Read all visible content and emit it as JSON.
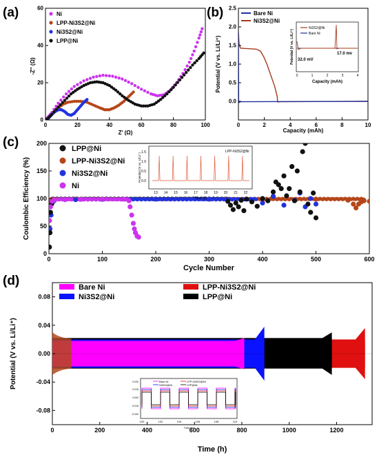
{
  "colors": {
    "ni": "#cc33ee",
    "lpp_ni3s2": "#b5461a",
    "ni3s2": "#2233dd",
    "lpp": "#111111",
    "bare_ni_b": "#1f2f9f",
    "ni3s2_b": "#a33a1a",
    "bare_d": "#ff00ff",
    "ni3s2_d": "#0a12ff",
    "lpp_ni3s2_d": "#e01010",
    "lpp_d": "#000000"
  },
  "chart_data": [
    {
      "panel": "(a)",
      "type": "scatter",
      "xlabel": "Z' (Ω)",
      "ylabel": "-Z'' (Ω)",
      "xlim": [
        0,
        100
      ],
      "ylim": [
        0,
        60
      ],
      "xticks": [
        "0",
        "20",
        "40",
        "60",
        "80",
        "100"
      ],
      "yticks": [
        "0",
        "20",
        "40",
        "60"
      ],
      "legend": {
        "placement": "top-left",
        "entries": [
          "Ni",
          "LPP-Ni3S2@Ni",
          "Ni3S2@Ni",
          "LPP@Ni"
        ]
      },
      "series": [
        {
          "name": "Ni",
          "x": [
            1,
            4,
            8,
            13,
            18,
            24,
            30,
            36,
            42,
            48,
            54,
            60,
            66,
            70,
            74,
            78,
            82,
            86,
            90,
            93,
            96,
            98
          ],
          "y": [
            1,
            4,
            9,
            14,
            18,
            21,
            23,
            24,
            23.5,
            22,
            19.5,
            16.5,
            14,
            13,
            13.5,
            16,
            20,
            25,
            31,
            37,
            44,
            49
          ]
        },
        {
          "name": "LPP-Ni3S2@Ni",
          "x": [
            2,
            5,
            8,
            11,
            14,
            18,
            22,
            26,
            30,
            34,
            37,
            40,
            43,
            46,
            49,
            52,
            55
          ],
          "y": [
            1,
            4,
            6.5,
            8.5,
            9.5,
            10,
            10,
            9.5,
            8,
            6.5,
            5.5,
            5.5,
            6.5,
            8,
            10,
            12.5,
            15
          ]
        },
        {
          "name": "Ni3S2@Ni",
          "x": [
            2,
            4,
            6,
            8,
            10,
            12,
            14,
            16,
            18,
            20,
            22,
            24,
            26
          ],
          "y": [
            1,
            3,
            4.5,
            5.5,
            5.5,
            4.5,
            3,
            2.5,
            3.5,
            5.5,
            7.5,
            9.5,
            11
          ]
        },
        {
          "name": "LPP@Ni",
          "x": [
            1,
            4,
            8,
            12,
            16,
            20,
            24,
            28,
            32,
            36,
            40,
            44,
            48,
            52,
            56,
            60,
            64,
            68,
            72,
            76,
            80,
            84,
            88,
            92,
            96,
            99
          ],
          "y": [
            0.5,
            3,
            7,
            10.5,
            14,
            16.5,
            18.5,
            20,
            20.5,
            20,
            18.5,
            16,
            13,
            10.5,
            8.5,
            7.5,
            7.5,
            8.5,
            11,
            14,
            17.5,
            21.5,
            25.5,
            29.5,
            33,
            36
          ]
        }
      ]
    },
    {
      "panel": "(b)",
      "type": "line",
      "xlabel": "Capacity (mAh)",
      "ylabel": "Potential (V vs. Li/Li⁺)",
      "xlim": [
        0,
        10
      ],
      "ylim": [
        -0.5,
        2.5
      ],
      "xticks": [
        "0",
        "2",
        "4",
        "6",
        "8",
        "10"
      ],
      "yticks": [
        "0.0",
        "0.5",
        "1.0",
        "1.5",
        "2.0",
        "2.5"
      ],
      "legend": {
        "placement": "top-left",
        "entries": [
          "Bare Ni",
          "Ni3S2@Ni"
        ]
      },
      "series": [
        {
          "name": "Bare Ni",
          "x": [
            0,
            0.02,
            0.06,
            0.15,
            10
          ],
          "y": [
            1.85,
            0.0,
            -0.03,
            -0.01,
            0.0
          ]
        },
        {
          "name": "Ni3S2@Ni",
          "x": [
            0,
            0.05,
            0.15,
            0.5,
            1.0,
            1.4,
            1.7,
            1.95,
            2.2,
            2.5,
            2.8,
            3.0,
            3.02,
            3.06,
            3.15,
            10
          ],
          "y": [
            1.85,
            1.55,
            1.43,
            1.42,
            1.41,
            1.4,
            1.35,
            1.2,
            1.0,
            0.7,
            0.4,
            0.12,
            0.0,
            -0.02,
            -0.01,
            0.0
          ]
        }
      ],
      "inset": {
        "xlabel": "Capacity (mAh)",
        "ylabel": "Potential (V vs. Li/Li⁺)",
        "xlim": [
          0,
          4
        ],
        "xticks": [
          "0",
          "1",
          "2",
          "3",
          "4"
        ],
        "legend": [
          "Ni3S2@Ni",
          "Bare Ni"
        ],
        "annotations": [
          "32.0 mV",
          "17.0 mv"
        ]
      }
    },
    {
      "panel": "(c)",
      "type": "scatter",
      "xlabel": "Cycle Number",
      "ylabel": "Coulombic Efficiency (%)",
      "xlim": [
        0,
        600
      ],
      "ylim": [
        0,
        200
      ],
      "xticks": [
        "0",
        "100",
        "200",
        "300",
        "400",
        "500",
        "600"
      ],
      "yticks": [
        "0",
        "50",
        "100",
        "150",
        "200"
      ],
      "legend": {
        "placement": "top-left",
        "entries": [
          "LPP@Ni",
          "LPP-Ni3S2@Ni",
          "Ni3S2@Ni",
          "Ni"
        ]
      },
      "series": [
        {
          "name": "LPP@Ni",
          "note": "~99.5% baseline, scatter after cycle 330",
          "x": [
            1,
            2,
            3,
            5,
            8,
            335,
            340,
            345,
            350,
            355,
            360,
            365,
            370,
            380,
            390,
            400,
            410,
            420,
            425,
            430,
            435,
            440,
            445,
            450,
            455,
            460,
            465,
            470,
            475,
            480,
            485,
            490,
            495,
            500
          ],
          "y": [
            12,
            38,
            75,
            90,
            96,
            95,
            88,
            80,
            92,
            85,
            97,
            78,
            99,
            94,
            86,
            100,
            96,
            112,
            130,
            125,
            118,
            141,
            105,
            118,
            158,
            96,
            150,
            112,
            185,
            200,
            90,
            75,
            110,
            65
          ]
        },
        {
          "name": "LPP-Ni3S2@Ni",
          "note": "~99% baseline to cycle 580",
          "x": [
            1,
            3,
            5,
            10,
            50,
            100,
            200,
            300,
            400,
            500,
            560,
            570,
            575,
            580,
            585,
            590,
            600
          ],
          "y": [
            60,
            90,
            96,
            98,
            99,
            99,
            99,
            99,
            99,
            99,
            97,
            90,
            83,
            90,
            94,
            96,
            95
          ]
        },
        {
          "name": "Ni3S2@Ni",
          "note": "~99% baseline, scatter 390-500",
          "x": [
            2,
            4,
            6,
            10,
            50,
            100,
            200,
            300,
            380,
            400,
            420,
            440,
            460,
            470,
            480,
            490,
            500
          ],
          "y": [
            45,
            70,
            92,
            96,
            98,
            98.5,
            99,
            99,
            98,
            92,
            104,
            88,
            97,
            110,
            85,
            100,
            90
          ]
        },
        {
          "name": "Ni",
          "note": "drops near cycle 155-165",
          "x": [
            1,
            3,
            6,
            10,
            30,
            60,
            100,
            140,
            150,
            152,
            155,
            158,
            160,
            162,
            165,
            168
          ],
          "y": [
            60,
            85,
            95,
            97,
            98,
            98.5,
            99,
            99,
            96,
            85,
            70,
            55,
            45,
            38,
            32,
            30
          ]
        }
      ],
      "inset": {
        "legend": "LPP-Ni3S2@Ni",
        "xlabel": "Time (h)",
        "ylabel": "Potential (V vs. Li/Li⁺)",
        "xticks": [
          "13",
          "14",
          "15",
          "16",
          "17",
          "18",
          "19",
          "20",
          "21",
          "22"
        ],
        "yticks": [
          "0.0",
          "0.5",
          "1.0",
          "1.5"
        ]
      }
    },
    {
      "panel": "(d)",
      "type": "area",
      "xlabel": "Time (h)",
      "ylabel": "Potential (V vs. Li/Li⁺)",
      "xlim": [
        0,
        1350
      ],
      "ylim": [
        -0.1,
        0.1
      ],
      "xticks": [
        "0",
        "200",
        "400",
        "600",
        "800",
        "1000",
        "1200"
      ],
      "yticks": [
        "-0.08",
        "-0.04",
        "0.00",
        "0.04",
        "0.08"
      ],
      "legend": {
        "placement": "top",
        "entries": [
          "Bare Ni",
          "Ni3S2@Ni",
          "LPP-Ni3S2@Ni",
          "LPP@Ni"
        ]
      },
      "series": [
        {
          "name": "LPP-Ni3S2@Ni",
          "t_end": 1320,
          "band": [
            -0.02,
            0.02
          ],
          "end_spike": 0.036
        },
        {
          "name": "LPP@Ni",
          "t_end": 1180,
          "band": [
            -0.021,
            0.022
          ],
          "end_spike": 0.03
        },
        {
          "name": "Ni3S2@Ni",
          "t_end": 895,
          "band": [
            -0.02,
            0.02
          ],
          "end_spike": 0.038
        },
        {
          "name": "Bare Ni",
          "t_end": 810,
          "band": [
            -0.018,
            0.018
          ],
          "end_spike": 0.022
        }
      ],
      "inset": {
        "legend": [
          "Bare Ni",
          "Ni3S2@Ni",
          "LPP-Ni3S2@Ni",
          "LPP@Ni"
        ],
        "xlabel": "Time (h)",
        "xticks": [
          "100",
          "102",
          "104",
          "106",
          "108",
          "110"
        ],
        "yticks": [
          "-0.032",
          "-0.016",
          "0.000",
          "0.016",
          "0.032"
        ]
      }
    }
  ]
}
